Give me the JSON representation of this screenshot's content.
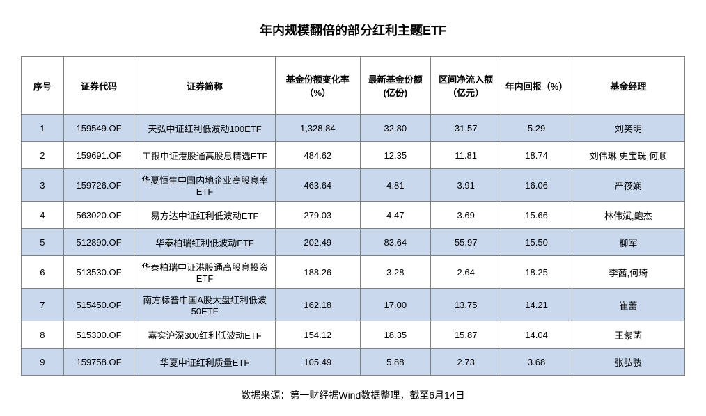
{
  "title": "年内规模翻倍的部分红利主题ETF",
  "footer": "数据来源：第一财经据Wind数据整理，截至6月14日",
  "columns": {
    "seq": "序号",
    "code": "证券代码",
    "name": "证券简称",
    "chg": "基金份额变化率（%）",
    "share": "最新基金份额(亿份)",
    "flow": "区间净流入额（亿元）",
    "ret": "年内回报（%）",
    "mgr": "基金经理"
  },
  "rows": [
    {
      "seq": "1",
      "code": "159549.OF",
      "name": "天弘中证红利低波动100ETF",
      "chg": "1,328.84",
      "share": "32.80",
      "flow": "31.57",
      "ret": "5.29",
      "mgr": "刘笑明"
    },
    {
      "seq": "2",
      "code": "159691.OF",
      "name": "工银中证港股通高股息精选ETF",
      "chg": "484.62",
      "share": "12.35",
      "flow": "11.81",
      "ret": "18.74",
      "mgr": "刘伟琳,史宝珖,何顺"
    },
    {
      "seq": "3",
      "code": "159726.OF",
      "name": "华夏恒生中国内地企业高股息率ETF",
      "chg": "463.64",
      "share": "4.81",
      "flow": "3.91",
      "ret": "16.06",
      "mgr": "严筱娴"
    },
    {
      "seq": "4",
      "code": "563020.OF",
      "name": "易方达中证红利低波动ETF",
      "chg": "279.03",
      "share": "4.47",
      "flow": "3.69",
      "ret": "15.66",
      "mgr": "林伟斌,鲍杰"
    },
    {
      "seq": "5",
      "code": "512890.OF",
      "name": "华泰柏瑞红利低波动ETF",
      "chg": "202.49",
      "share": "83.64",
      "flow": "55.97",
      "ret": "15.50",
      "mgr": "柳军"
    },
    {
      "seq": "6",
      "code": "513530.OF",
      "name": "华泰柏瑞中证港股通高股息投资ETF",
      "chg": "188.26",
      "share": "3.28",
      "flow": "2.64",
      "ret": "18.25",
      "mgr": "李茜,何琦"
    },
    {
      "seq": "7",
      "code": "515450.OF",
      "name": "南方标普中国A股大盘红利低波50ETF",
      "chg": "162.18",
      "share": "17.00",
      "flow": "13.75",
      "ret": "14.21",
      "mgr": "崔蕾"
    },
    {
      "seq": "8",
      "code": "515300.OF",
      "name": "嘉实沪深300红利低波动ETF",
      "chg": "154.12",
      "share": "18.35",
      "flow": "15.87",
      "ret": "14.04",
      "mgr": "王紫菡"
    },
    {
      "seq": "9",
      "code": "159758.OF",
      "name": "华夏中证红利质量ETF",
      "chg": "105.49",
      "share": "5.88",
      "flow": "2.73",
      "ret": "3.68",
      "mgr": "张弘弢"
    }
  ]
}
